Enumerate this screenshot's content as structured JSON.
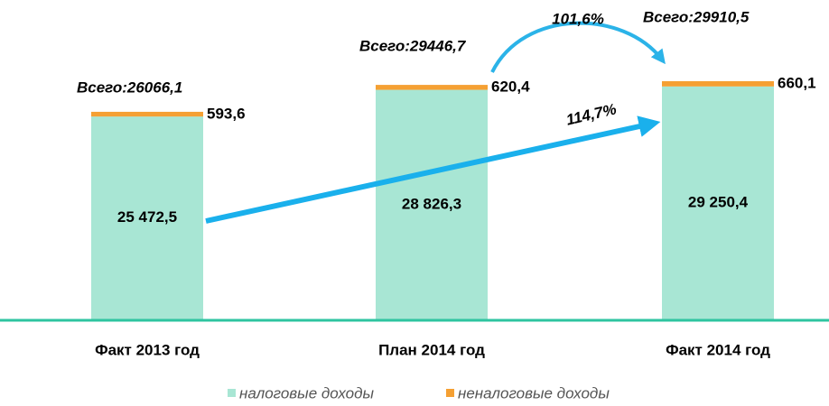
{
  "chart_data": {
    "type": "stacked_bar",
    "categories": [
      "Факт 2013 год",
      "План 2014 год",
      "Факт 2014 год"
    ],
    "series": [
      {
        "name": "налоговые доходы",
        "color": "#a8e6d4",
        "values": [
          25472.5,
          28826.3,
          29250.4
        ],
        "value_labels": [
          "25 472,5",
          "28 826,3",
          "29 250,4"
        ]
      },
      {
        "name": "неналоговые доходы",
        "color": "#f5a033",
        "values": [
          593.6,
          620.4,
          660.1
        ],
        "value_labels": [
          "593,6",
          "620,4",
          "660,1"
        ]
      }
    ],
    "total_labels": [
      "Всего:26066,1",
      "Всего:29446,7",
      "Всего:29910,5"
    ],
    "annotations": [
      "114,7%",
      "101,6%"
    ]
  }
}
